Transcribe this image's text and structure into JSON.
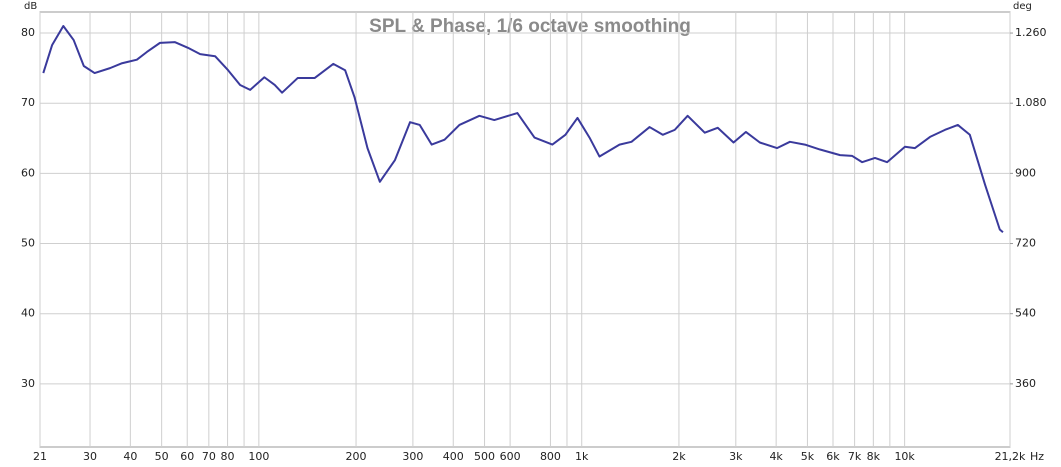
{
  "chart_data": {
    "type": "line",
    "title": "SPL & Phase, 1/6 octave smoothing",
    "ylabel": "dB",
    "y2label": "deg",
    "xlabel": "Hz",
    "xscale": "log",
    "grid": true,
    "xlim": [
      21,
      21200
    ],
    "ylim": [
      21,
      83
    ],
    "y2lim": [
      198,
      1314
    ],
    "xticks": [
      21,
      30,
      40,
      50,
      60,
      70,
      80,
      100,
      200,
      300,
      400,
      500,
      600,
      800,
      {
        "value": 1000,
        "label": "1k"
      },
      {
        "value": 2000,
        "label": "2k"
      },
      {
        "value": 3000,
        "label": "3k"
      },
      {
        "value": 4000,
        "label": "4k"
      },
      {
        "value": 5000,
        "label": "5k"
      },
      {
        "value": 6000,
        "label": "6k"
      },
      {
        "value": 7000,
        "label": "7k"
      },
      {
        "value": 8000,
        "label": "8k"
      },
      {
        "value": 10000,
        "label": "10k"
      },
      {
        "value": 21200,
        "label": "21,2k"
      }
    ],
    "x_minor_ticks": [
      90,
      900,
      9000
    ],
    "yticks": [
      30,
      40,
      50,
      60,
      70,
      80
    ],
    "y2ticks": [
      360,
      540,
      720,
      900,
      {
        "value": 1080,
        "label": "1.080"
      },
      {
        "value": 1260,
        "label": "1.260"
      }
    ],
    "x": [
      21.5,
      22.9,
      24.8,
      26.7,
      28.7,
      31,
      34.6,
      37.7,
      41.9,
      45,
      49.4,
      55,
      60.3,
      65.8,
      73.2,
      80.3,
      87.5,
      94,
      104,
      112,
      118,
      132,
      149,
      170,
      185,
      198,
      217,
      237,
      264,
      294,
      315,
      343,
      376,
      418,
      482,
      536,
      632,
      714,
      811,
      890,
      970,
      1057,
      1135,
      1309,
      1426,
      1622,
      1782,
      1941,
      2128,
      2404,
      2637,
      2952,
      3223,
      3561,
      4024,
      4413,
      4910,
      5470,
      6310,
      6871,
      7381,
      8095,
      8829,
      10024,
      10765,
      11987,
      13335,
      14615,
      15919,
      17740,
      19710,
      20160
    ],
    "series": [
      {
        "color": "#3a3a9c",
        "values": [
          74.3,
          78.3,
          81.0,
          79.0,
          75.3,
          74.3,
          75.0,
          75.7,
          76.2,
          77.3,
          78.6,
          78.7,
          77.9,
          77.0,
          76.7,
          74.7,
          72.6,
          71.9,
          73.7,
          72.6,
          71.5,
          73.6,
          73.6,
          75.6,
          74.7,
          70.8,
          63.6,
          58.8,
          61.9,
          67.3,
          66.9,
          64.1,
          64.8,
          66.9,
          68.2,
          67.6,
          68.6,
          65.1,
          64.1,
          65.5,
          67.9,
          65.1,
          62.4,
          64.1,
          64.5,
          66.6,
          65.5,
          66.2,
          68.2,
          65.8,
          66.5,
          64.4,
          65.9,
          64.4,
          63.6,
          64.5,
          64.1,
          63.4,
          62.6,
          62.5,
          61.6,
          62.2,
          61.6,
          63.8,
          63.6,
          65.2,
          66.2,
          66.9,
          65.5,
          58.4,
          52.0,
          51.6
        ]
      }
    ]
  }
}
